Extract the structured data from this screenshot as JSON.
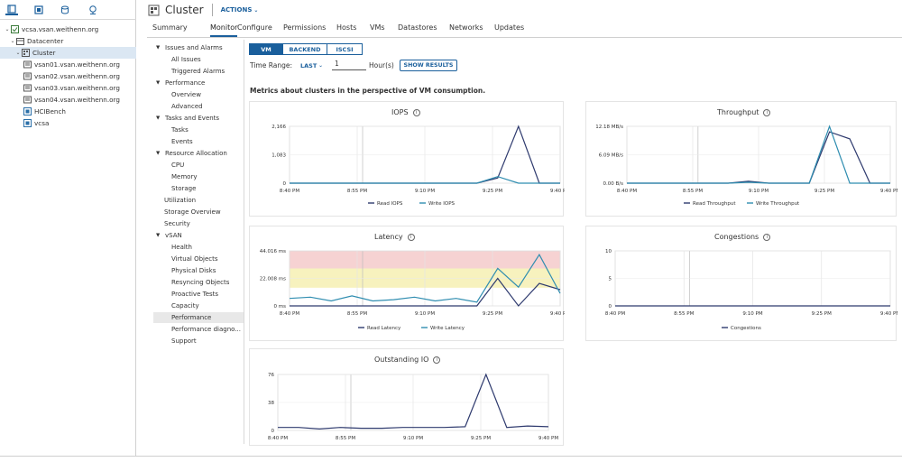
{
  "nav": {
    "tree": [
      {
        "label": "vcsa.vsan.weithenn.org",
        "icon": "vcenter-icon",
        "level": 0,
        "expanded": true
      },
      {
        "label": "Datacenter",
        "icon": "datacenter-icon",
        "level": 1,
        "expanded": true
      },
      {
        "label": "Cluster",
        "icon": "cluster-icon",
        "level": 2,
        "expanded": true,
        "selected": true
      },
      {
        "label": "vsan01.vsan.weithenn.org",
        "icon": "host-icon",
        "level": 3
      },
      {
        "label": "vsan02.vsan.weithenn.org",
        "icon": "host-icon",
        "level": 3
      },
      {
        "label": "vsan03.vsan.weithenn.org",
        "icon": "host-icon",
        "level": 3
      },
      {
        "label": "vsan04.vsan.weithenn.org",
        "icon": "host-icon",
        "level": 3
      },
      {
        "label": "HCIBench",
        "icon": "vm-icon",
        "level": 3
      },
      {
        "label": "vcsa",
        "icon": "vm-icon",
        "level": 3
      }
    ]
  },
  "header": {
    "title": "Cluster",
    "actions_label": "ACTIONS"
  },
  "tabs": [
    "Summary",
    "Monitor",
    "Configure",
    "Permissions",
    "Hosts",
    "VMs",
    "Datastores",
    "Networks",
    "Updates"
  ],
  "subnav": [
    {
      "label": "Issues and Alarms",
      "group": true
    },
    {
      "label": "All Issues"
    },
    {
      "label": "Triggered Alarms"
    },
    {
      "label": "Performance",
      "group": true
    },
    {
      "label": "Overview"
    },
    {
      "label": "Advanced"
    },
    {
      "label": "Tasks and Events",
      "group": true
    },
    {
      "label": "Tasks"
    },
    {
      "label": "Events"
    },
    {
      "label": "Resource Allocation",
      "group": true
    },
    {
      "label": "CPU"
    },
    {
      "label": "Memory"
    },
    {
      "label": "Storage"
    },
    {
      "label": "Utilization",
      "plain": true
    },
    {
      "label": "Storage Overview",
      "plain": true
    },
    {
      "label": "Security",
      "plain": true
    },
    {
      "label": "vSAN",
      "group": true
    },
    {
      "label": "Health"
    },
    {
      "label": "Virtual Objects"
    },
    {
      "label": "Physical Disks"
    },
    {
      "label": "Resyncing Objects"
    },
    {
      "label": "Proactive Tests"
    },
    {
      "label": "Capacity"
    },
    {
      "label": "Performance",
      "selected": true
    },
    {
      "label": "Performance diagno..."
    },
    {
      "label": "Support"
    }
  ],
  "segments": [
    "VM",
    "BACKEND",
    "ISCSI"
  ],
  "time_range": {
    "label": "Time Range:",
    "mode": "LAST",
    "value": "1",
    "unit": "Hour(s)",
    "button": "SHOW RESULTS"
  },
  "description": "Metrics about clusters in the perspective of VM consumption.",
  "colors": {
    "accent": "#1a5f9c",
    "series_dark": "#2e3a6e",
    "series_light": "#2f8db0",
    "band_red": "#f6d2d2",
    "band_yellow": "#f7f2be"
  },
  "x_ticks": [
    "8:40 PM",
    "8:55 PM",
    "9:10 PM",
    "9:25 PM",
    "9:40 PM"
  ],
  "chart_data": [
    {
      "type": "line",
      "title": "IOPS",
      "y_ticks": [
        "2,166",
        "1,083",
        "0"
      ],
      "ylim": [
        0,
        2166
      ],
      "x": [
        0,
        1,
        2,
        3,
        4,
        5,
        6,
        7,
        8,
        9,
        10,
        11,
        12,
        13
      ],
      "series": [
        {
          "name": "Read IOPS",
          "color": "#2e3a6e",
          "values": [
            0,
            0,
            0,
            0,
            0,
            0,
            0,
            0,
            0,
            0,
            200,
            2166,
            0,
            0
          ]
        },
        {
          "name": "Write IOPS",
          "color": "#2f8db0",
          "values": [
            0,
            0,
            0,
            0,
            0,
            0,
            0,
            0,
            0,
            0,
            250,
            0,
            0,
            0
          ]
        }
      ]
    },
    {
      "type": "line",
      "title": "Throughput",
      "y_ticks": [
        "12.18 MB/s",
        "6.09 MB/s",
        "0.00 B/s"
      ],
      "ylim": [
        0,
        12.18
      ],
      "x": [
        0,
        1,
        2,
        3,
        4,
        5,
        6,
        7,
        8,
        9,
        10,
        11,
        12,
        13
      ],
      "series": [
        {
          "name": "Read Throughput",
          "color": "#2e3a6e",
          "values": [
            0,
            0,
            0,
            0,
            0,
            0,
            0.4,
            0,
            0,
            0,
            11,
            9.5,
            0,
            0
          ]
        },
        {
          "name": "Write Throughput",
          "color": "#2f8db0",
          "values": [
            0,
            0,
            0,
            0,
            0,
            0,
            0.2,
            0,
            0,
            0,
            12.18,
            0,
            0,
            0
          ]
        }
      ]
    },
    {
      "type": "line",
      "title": "Latency",
      "y_ticks": [
        "44.016 ms",
        "22.008 ms",
        "0 ms"
      ],
      "ylim": [
        0,
        44.016
      ],
      "x": [
        0,
        1,
        2,
        3,
        4,
        5,
        6,
        7,
        8,
        9,
        10,
        11,
        12,
        13
      ],
      "series": [
        {
          "name": "Read Latency",
          "color": "#2e3a6e",
          "values": [
            0,
            0,
            0,
            0,
            0,
            0,
            0,
            0,
            0,
            0,
            22,
            0,
            18,
            13
          ]
        },
        {
          "name": "Write Latency",
          "color": "#2f8db0",
          "values": [
            6,
            7,
            4,
            8,
            4,
            5,
            7,
            4,
            6,
            3,
            30,
            15,
            41,
            10
          ]
        }
      ]
    },
    {
      "type": "line",
      "title": "Congestions",
      "y_ticks": [
        "10",
        "5",
        "0"
      ],
      "ylim": [
        0,
        10
      ],
      "x": [
        0,
        1,
        2,
        3,
        4,
        5,
        6,
        7,
        8,
        9,
        10,
        11,
        12,
        13
      ],
      "series": [
        {
          "name": "Congestions",
          "color": "#2e3a6e",
          "values": [
            0,
            0,
            0,
            0,
            0,
            0,
            0,
            0,
            0,
            0,
            0,
            0,
            0,
            0
          ]
        }
      ]
    },
    {
      "type": "line",
      "title": "Outstanding IO",
      "y_ticks": [
        "76",
        "38",
        "0"
      ],
      "ylim": [
        0,
        76
      ],
      "x": [
        0,
        1,
        2,
        3,
        4,
        5,
        6,
        7,
        8,
        9,
        10,
        11,
        12,
        13
      ],
      "series": [
        {
          "name": "Outstanding IO",
          "color": "#2e3a6e",
          "values": [
            4,
            4,
            2,
            4,
            3,
            3,
            4,
            4,
            4,
            5,
            76,
            4,
            6,
            5
          ]
        }
      ]
    }
  ]
}
